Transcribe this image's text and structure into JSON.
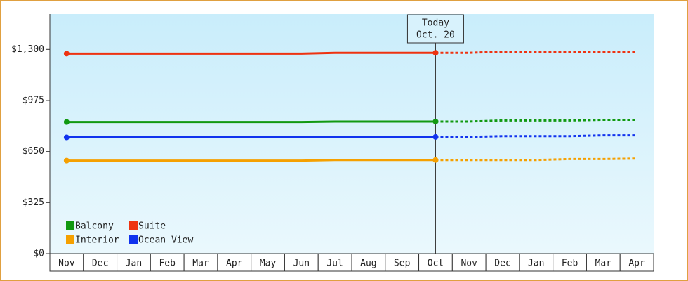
{
  "chart_data": {
    "type": "line",
    "categories": [
      "Nov",
      "Dec",
      "Jan",
      "Feb",
      "Mar",
      "Apr",
      "May",
      "Jun",
      "Jul",
      "Aug",
      "Sep",
      "Oct",
      "Nov",
      "Dec",
      "Jan",
      "Feb",
      "Mar",
      "Apr"
    ],
    "series": [
      {
        "name": "Balcony",
        "color": "#119911",
        "values": [
          838,
          838,
          838,
          838,
          838,
          838,
          838,
          838,
          841,
          841,
          841,
          841,
          841,
          848,
          848,
          848,
          852,
          852
        ]
      },
      {
        "name": "Suite",
        "color": "#ee3311",
        "values": [
          1273,
          1273,
          1273,
          1273,
          1273,
          1273,
          1273,
          1273,
          1278,
          1278,
          1278,
          1278,
          1278,
          1286,
          1286,
          1286,
          1286,
          1286
        ]
      },
      {
        "name": "Interior",
        "color": "#f5a000",
        "values": [
          592,
          592,
          592,
          592,
          592,
          592,
          592,
          592,
          596,
          596,
          596,
          596,
          596,
          596,
          596,
          602,
          602,
          605
        ]
      },
      {
        "name": "Ocean View",
        "color": "#1133ee",
        "values": [
          740,
          740,
          740,
          740,
          740,
          740,
          740,
          740,
          743,
          743,
          743,
          743,
          743,
          748,
          748,
          748,
          753,
          753
        ]
      }
    ],
    "ylim": [
      0,
      1525
    ],
    "yticks": [
      {
        "value": 0,
        "label": "$0"
      },
      {
        "value": 325,
        "label": "$325"
      },
      {
        "value": 650,
        "label": "$650"
      },
      {
        "value": 975,
        "label": "$975"
      },
      {
        "value": 1300,
        "label": "$1,300"
      }
    ],
    "today": {
      "label": "Today",
      "date": "Oct. 20",
      "category": "Oct"
    }
  }
}
